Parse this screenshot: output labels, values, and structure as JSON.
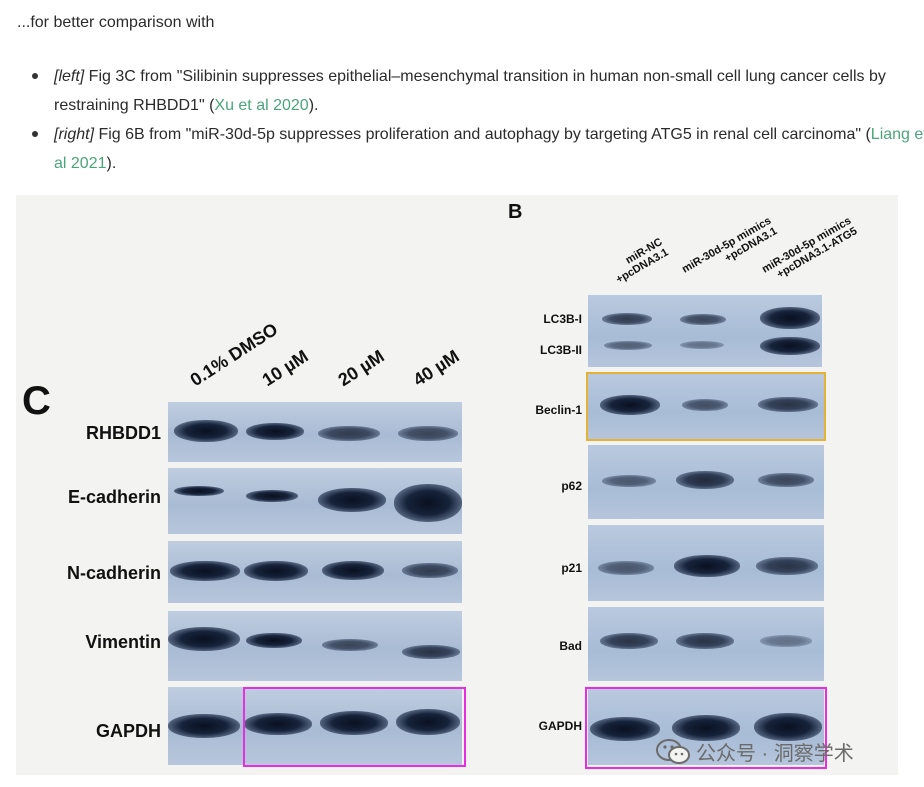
{
  "intro_text": "...for better comparison with",
  "references": [
    {
      "position_tag": "[left]",
      "before_link": " Fig 3C from \"Silibinin suppresses epithelial–mesenchymal transition in human non-small cell lung cancer cells by restraining RHBDD1\" (",
      "link_text": "Xu et al 2020",
      "after_link": ")."
    },
    {
      "position_tag": "[right]",
      "before_link": " Fig 6B from \"miR-30d-5p suppresses proliferation and autophagy by targeting ATG5 in renal cell carcinoma\" (",
      "link_text": "Liang et al 2021",
      "after_link": ")."
    }
  ],
  "left_panel": {
    "letter": "C",
    "lanes": [
      "0.1% DMSO",
      "10 µM",
      "20 µM",
      "40 µM"
    ],
    "rows": [
      "RHBDD1",
      "E-cadherin",
      "N-cadherin",
      "Vimentin",
      "GAPDH"
    ]
  },
  "right_panel": {
    "letter": "B",
    "lanes": [
      [
        "miR-NC",
        "+pcDNA3.1"
      ],
      [
        "miR-30d-5p mimics",
        "+pcDNA3.1"
      ],
      [
        "miR-30d-5p mimics",
        "+pcDNA3.1-ATG5"
      ]
    ],
    "rows": [
      "LC3B-I",
      "LC3B-II",
      "Beclin-1",
      "p62",
      "p21",
      "Bad",
      "GAPDH"
    ]
  },
  "highlight_colors": {
    "magenta": "#e52fe0",
    "gold": "#e3b236",
    "link": "#4aa67a"
  },
  "watermark": {
    "icon": "wechat-icon",
    "text": "公众号 · 洞察学术"
  }
}
